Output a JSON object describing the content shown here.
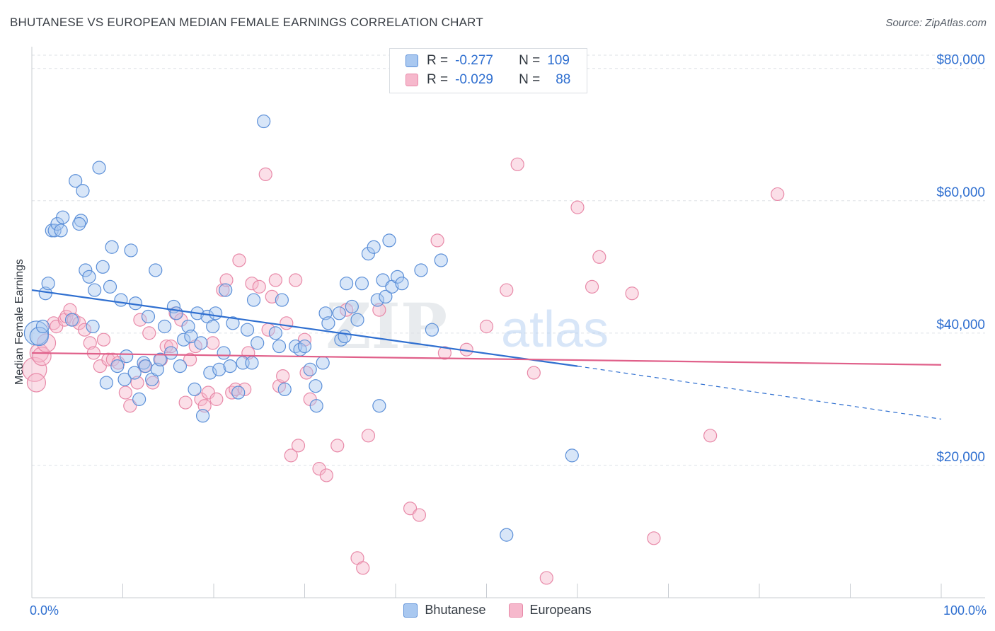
{
  "title": "BHUTANESE VS EUROPEAN MEDIAN FEMALE EARNINGS CORRELATION CHART",
  "source": "Source: ZipAtlas.com",
  "watermark": {
    "zip": "ZIP",
    "atlas": "atlas"
  },
  "legend": {
    "rows": [
      {
        "r_label": "R =",
        "r_value": "-0.277",
        "n_label": "N =",
        "n_value": "109"
      },
      {
        "r_label": "R =",
        "r_value": "-0.029",
        "n_label": "N =",
        "n_value": "88"
      }
    ]
  },
  "bottom_legend": [
    "Bhutanese",
    "Europeans"
  ],
  "colors": {
    "bhutanese_fill": "#a9c8f0",
    "bhutanese_stroke": "#5b8fd8",
    "bhutanese_line": "#2f6fd0",
    "europeans_fill": "#f6b8cc",
    "europeans_stroke": "#e889a8",
    "europeans_line": "#e0608a",
    "axis_value": "#2f6fd0",
    "grid": "#dde1e6"
  },
  "chart_data": {
    "type": "scatter",
    "title": "BHUTANESE VS EUROPEAN MEDIAN FEMALE EARNINGS CORRELATION CHART",
    "xlabel": "",
    "ylabel": "Median Female Earnings",
    "x_tick_labels": [
      "0.0%",
      "100.0%"
    ],
    "y_tick_labels": [
      "$20,000",
      "$40,000",
      "$60,000",
      "$80,000"
    ],
    "y_ticks": [
      20000,
      40000,
      60000,
      80000
    ],
    "xlim": [
      0,
      100
    ],
    "ylim": [
      0,
      82000
    ],
    "grid": true,
    "legend_position": "top-center",
    "series": [
      {
        "name": "Bhutanese",
        "r": -0.277,
        "n": 109,
        "trend": {
          "x0": 0,
          "y0": 46500,
          "x1": 60,
          "y1": 35000,
          "dashed_to_x": 100,
          "dashed_to_y": 27000
        },
        "points": [
          [
            0.5,
            40000,
            3
          ],
          [
            0.8,
            39500,
            2
          ],
          [
            1.2,
            41000,
            1
          ],
          [
            1.5,
            46000,
            1
          ],
          [
            1.8,
            47500,
            1
          ],
          [
            2.2,
            55500,
            1
          ],
          [
            2.5,
            55500,
            1
          ],
          [
            2.8,
            56500,
            1
          ],
          [
            3.2,
            55500,
            1
          ],
          [
            3.4,
            57500,
            1
          ],
          [
            4.4,
            42000,
            1
          ],
          [
            4.8,
            63000,
            1
          ],
          [
            5.4,
            57000,
            1
          ],
          [
            5.2,
            56500,
            1
          ],
          [
            5.6,
            61500,
            1
          ],
          [
            5.9,
            49500,
            1
          ],
          [
            6.3,
            48500,
            1
          ],
          [
            6.7,
            41000,
            1
          ],
          [
            6.9,
            46500,
            1
          ],
          [
            7.4,
            65000,
            1
          ],
          [
            7.8,
            50000,
            1
          ],
          [
            8.2,
            32500,
            1
          ],
          [
            8.6,
            47000,
            1
          ],
          [
            8.8,
            53000,
            1
          ],
          [
            9.4,
            35000,
            1
          ],
          [
            9.8,
            45000,
            1
          ],
          [
            10.2,
            33000,
            1
          ],
          [
            10.4,
            36500,
            1
          ],
          [
            10.9,
            52500,
            1
          ],
          [
            11.3,
            34000,
            1
          ],
          [
            11.4,
            44500,
            1
          ],
          [
            11.8,
            30000,
            1
          ],
          [
            12.3,
            35500,
            1
          ],
          [
            12.5,
            35000,
            1
          ],
          [
            12.8,
            42500,
            1
          ],
          [
            13.2,
            33000,
            1
          ],
          [
            13.6,
            49500,
            1
          ],
          [
            13.8,
            34500,
            1
          ],
          [
            14.1,
            36000,
            1
          ],
          [
            14.6,
            41000,
            1
          ],
          [
            15.3,
            37000,
            1
          ],
          [
            15.6,
            44000,
            1
          ],
          [
            15.9,
            43000,
            1
          ],
          [
            16.3,
            35000,
            1
          ],
          [
            16.7,
            39000,
            1
          ],
          [
            17.2,
            41000,
            1
          ],
          [
            17.5,
            39500,
            1
          ],
          [
            17.9,
            31500,
            1
          ],
          [
            18.2,
            43000,
            1
          ],
          [
            18.6,
            38500,
            1
          ],
          [
            18.8,
            27500,
            1
          ],
          [
            19.3,
            42500,
            1
          ],
          [
            19.6,
            34000,
            1
          ],
          [
            19.9,
            41000,
            1
          ],
          [
            20.2,
            43000,
            1
          ],
          [
            20.6,
            34500,
            1
          ],
          [
            21.1,
            37000,
            1
          ],
          [
            21.3,
            46500,
            1
          ],
          [
            21.8,
            35000,
            1
          ],
          [
            22.1,
            41500,
            1
          ],
          [
            22.7,
            31000,
            1
          ],
          [
            23.2,
            35500,
            1
          ],
          [
            23.7,
            40500,
            1
          ],
          [
            24.2,
            35500,
            1
          ],
          [
            24.4,
            45000,
            1
          ],
          [
            24.8,
            38500,
            1
          ],
          [
            25.5,
            72000,
            1
          ],
          [
            26.8,
            40000,
            1
          ],
          [
            27.2,
            38000,
            1
          ],
          [
            27.5,
            45000,
            1
          ],
          [
            27.8,
            31500,
            1
          ],
          [
            29.0,
            38000,
            1
          ],
          [
            29.5,
            37500,
            1
          ],
          [
            30.0,
            38000,
            1
          ],
          [
            30.6,
            34500,
            1
          ],
          [
            31.2,
            32000,
            1
          ],
          [
            31.3,
            29000,
            1
          ],
          [
            32.0,
            35500,
            1
          ],
          [
            32.3,
            43000,
            1
          ],
          [
            32.6,
            41500,
            1
          ],
          [
            33.8,
            43000,
            1
          ],
          [
            34.0,
            39000,
            1
          ],
          [
            34.4,
            39500,
            1
          ],
          [
            34.6,
            47500,
            1
          ],
          [
            35.2,
            44000,
            1
          ],
          [
            35.8,
            42000,
            1
          ],
          [
            36.3,
            47500,
            1
          ],
          [
            37.0,
            52000,
            1
          ],
          [
            37.6,
            53000,
            1
          ],
          [
            38.0,
            45000,
            1
          ],
          [
            38.2,
            29000,
            1
          ],
          [
            38.6,
            48000,
            1
          ],
          [
            38.9,
            45500,
            1
          ],
          [
            39.3,
            54000,
            1
          ],
          [
            39.6,
            47000,
            1
          ],
          [
            40.2,
            48500,
            1
          ],
          [
            40.7,
            47500,
            1
          ],
          [
            42.8,
            49500,
            1
          ],
          [
            44.0,
            40500,
            1
          ],
          [
            45.0,
            51000,
            1
          ],
          [
            52.2,
            9500,
            1
          ],
          [
            59.4,
            21500,
            1
          ]
        ]
      },
      {
        "name": "Europeans",
        "r": -0.029,
        "n": 88,
        "trend": {
          "x0": 0,
          "y0": 37000,
          "x1": 100,
          "y1": 35200
        },
        "points": [
          [
            0.3,
            34500,
            3
          ],
          [
            0.5,
            32500,
            2
          ],
          [
            0.8,
            37000,
            2
          ],
          [
            1.1,
            36500,
            2
          ],
          [
            1.6,
            38500,
            2
          ],
          [
            2.4,
            41500,
            1
          ],
          [
            2.7,
            41000,
            1
          ],
          [
            3.6,
            42000,
            1
          ],
          [
            3.8,
            42500,
            1
          ],
          [
            4.2,
            43500,
            1
          ],
          [
            4.6,
            42000,
            1
          ],
          [
            5.2,
            41500,
            1
          ],
          [
            5.8,
            40500,
            1
          ],
          [
            6.4,
            38500,
            1
          ],
          [
            6.8,
            37000,
            1
          ],
          [
            7.5,
            35000,
            1
          ],
          [
            7.9,
            39000,
            1
          ],
          [
            8.4,
            36000,
            1
          ],
          [
            8.9,
            36000,
            1
          ],
          [
            9.5,
            35500,
            1
          ],
          [
            10.3,
            31000,
            1
          ],
          [
            10.8,
            29000,
            1
          ],
          [
            11.6,
            32500,
            1
          ],
          [
            11.9,
            42000,
            1
          ],
          [
            12.4,
            35000,
            1
          ],
          [
            12.9,
            40000,
            1
          ],
          [
            13.3,
            32500,
            1
          ],
          [
            14.2,
            36000,
            1
          ],
          [
            14.8,
            38000,
            1
          ],
          [
            15.3,
            38000,
            1
          ],
          [
            15.8,
            43000,
            1
          ],
          [
            16.4,
            42000,
            1
          ],
          [
            16.9,
            29500,
            1
          ],
          [
            17.4,
            36000,
            1
          ],
          [
            18.0,
            38000,
            1
          ],
          [
            18.6,
            30000,
            1
          ],
          [
            19.0,
            29000,
            1
          ],
          [
            19.4,
            31000,
            1
          ],
          [
            19.9,
            38500,
            1
          ],
          [
            20.3,
            30000,
            1
          ],
          [
            21.0,
            46500,
            1
          ],
          [
            21.4,
            48000,
            1
          ],
          [
            22.0,
            31000,
            1
          ],
          [
            22.4,
            31500,
            1
          ],
          [
            22.8,
            51000,
            1
          ],
          [
            23.4,
            31500,
            1
          ],
          [
            23.8,
            37000,
            1
          ],
          [
            24.2,
            47500,
            1
          ],
          [
            25.0,
            47000,
            1
          ],
          [
            25.7,
            64000,
            1
          ],
          [
            26.0,
            40500,
            1
          ],
          [
            26.4,
            45500,
            1
          ],
          [
            26.8,
            48000,
            1
          ],
          [
            27.2,
            32000,
            1
          ],
          [
            27.6,
            33500,
            1
          ],
          [
            28.0,
            41500,
            1
          ],
          [
            28.5,
            21500,
            1
          ],
          [
            29.0,
            48000,
            1
          ],
          [
            29.3,
            23000,
            1
          ],
          [
            30.0,
            39000,
            1
          ],
          [
            30.2,
            34000,
            1
          ],
          [
            30.6,
            30000,
            1
          ],
          [
            31.6,
            19500,
            1
          ],
          [
            32.4,
            18500,
            1
          ],
          [
            33.6,
            23000,
            1
          ],
          [
            34.6,
            43500,
            1
          ],
          [
            35.8,
            6000,
            1
          ],
          [
            36.4,
            4500,
            1
          ],
          [
            37.0,
            24500,
            1
          ],
          [
            38.2,
            43500,
            1
          ],
          [
            41.6,
            13500,
            1
          ],
          [
            42.6,
            12500,
            1
          ],
          [
            44.6,
            54000,
            1
          ],
          [
            45.4,
            37000,
            1
          ],
          [
            47.8,
            37500,
            1
          ],
          [
            50.0,
            41000,
            1
          ],
          [
            52.2,
            46500,
            1
          ],
          [
            53.4,
            65500,
            1
          ],
          [
            55.2,
            34000,
            1
          ],
          [
            56.6,
            3000,
            1
          ],
          [
            60.0,
            59000,
            1
          ],
          [
            61.6,
            47000,
            1
          ],
          [
            62.4,
            51500,
            1
          ],
          [
            66.0,
            46000,
            1
          ],
          [
            68.4,
            9000,
            1
          ],
          [
            74.6,
            24500,
            1
          ],
          [
            82.0,
            61000,
            1
          ]
        ]
      }
    ]
  }
}
